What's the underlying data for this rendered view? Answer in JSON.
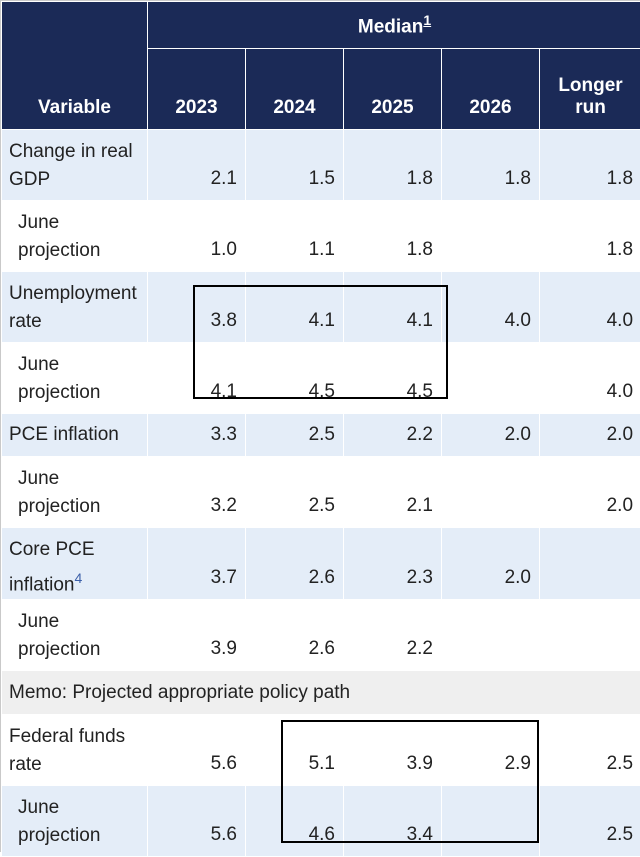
{
  "header": {
    "variable": "Variable",
    "median": "Median",
    "median_note": "1",
    "years": [
      "2023",
      "2024",
      "2025",
      "2026"
    ],
    "longer_run_1": "Longer",
    "longer_run_2": "run"
  },
  "rows": [
    {
      "label": "Change in real GDP",
      "values": [
        "2.1",
        "1.5",
        "1.8",
        "1.8",
        "1.8"
      ]
    },
    {
      "label": "June projection",
      "values": [
        "1.0",
        "1.1",
        "1.8",
        "",
        "1.8"
      ]
    },
    {
      "label": "Unemployment rate",
      "values": [
        "3.8",
        "4.1",
        "4.1",
        "4.0",
        "4.0"
      ]
    },
    {
      "label": "June projection",
      "values": [
        "4.1",
        "4.5",
        "4.5",
        "",
        "4.0"
      ]
    },
    {
      "label": "PCE inflation",
      "values": [
        "3.3",
        "2.5",
        "2.2",
        "2.0",
        "2.0"
      ]
    },
    {
      "label": "June projection",
      "values": [
        "3.2",
        "2.5",
        "2.1",
        "",
        "2.0"
      ]
    },
    {
      "label": "Core PCE inflation",
      "note": "4",
      "values": [
        "3.7",
        "2.6",
        "2.3",
        "2.0",
        ""
      ]
    },
    {
      "label": "June projection",
      "values": [
        "3.9",
        "2.6",
        "2.2",
        "",
        ""
      ]
    }
  ],
  "memo": "Memo: Projected appropriate policy path",
  "policy_rows": [
    {
      "label": "Federal funds rate",
      "values": [
        "5.6",
        "5.1",
        "3.9",
        "2.9",
        "2.5"
      ]
    },
    {
      "label": "June projection",
      "values": [
        "5.6",
        "4.6",
        "3.4",
        "",
        "2.5"
      ]
    }
  ]
}
